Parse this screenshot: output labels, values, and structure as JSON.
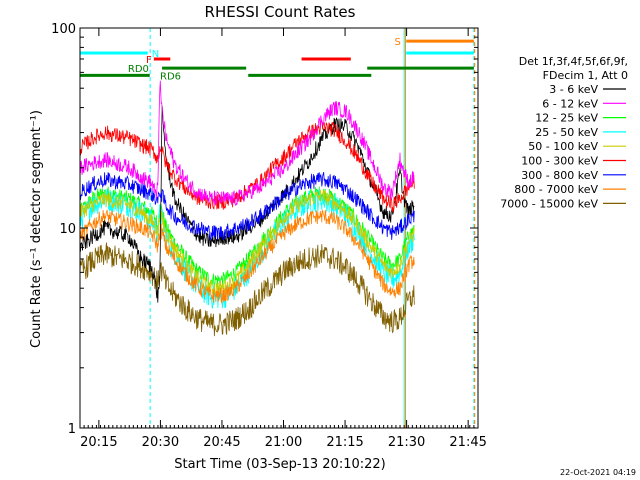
{
  "chart_data": {
    "type": "line",
    "title": "RHESSI Count Rates",
    "xlabel": "Start Time (03-Sep-13 20:10:22)",
    "ylabel": "Count Rate (s⁻¹ detector segment⁻¹)",
    "x_unit": "minutes after 20:10:22",
    "xlim": [
      0,
      97
    ],
    "ylim": [
      1,
      100
    ],
    "yscale": "log",
    "x_ticks": [
      {
        "label": "20:15",
        "x": 4.6
      },
      {
        "label": "20:30",
        "x": 19.6
      },
      {
        "label": "20:45",
        "x": 34.6
      },
      {
        "label": "21:00",
        "x": 49.6
      },
      {
        "label": "21:15",
        "x": 64.6
      },
      {
        "label": "21:30",
        "x": 79.6
      },
      {
        "label": "21:45",
        "x": 94.6
      }
    ],
    "y_ticks": [
      {
        "label": "1",
        "y": 1
      },
      {
        "label": "10",
        "y": 10
      },
      {
        "label": "100",
        "y": 100
      }
    ],
    "grid": false,
    "legend_position": "right",
    "legend_header": [
      "Det 1f,3f,4f,5f,6f,9f,",
      "FDecim 1, Att 0"
    ],
    "x_common": [
      0,
      3,
      6,
      9,
      12,
      15,
      17,
      18,
      18.5,
      19,
      19.5,
      20,
      21,
      23,
      26,
      29,
      32,
      35,
      38,
      41,
      44,
      47,
      50,
      53,
      56,
      59,
      62,
      65,
      68,
      71,
      74,
      76,
      78,
      79,
      80,
      81.5
    ],
    "series": [
      {
        "name": "3 - 6 keV",
        "color": "#000000",
        "values": [
          8,
          9,
          10,
          9.5,
          9,
          7,
          6.5,
          6,
          5,
          4.5,
          6,
          38,
          22,
          14,
          11,
          9,
          8.5,
          9,
          9,
          10,
          11,
          13,
          15,
          18,
          22,
          28,
          33,
          32,
          25,
          17,
          12,
          11.5,
          19,
          14,
          12,
          13
        ]
      },
      {
        "name": "6 - 12 keV",
        "color": "#ff00ff",
        "values": [
          20,
          21,
          22,
          21,
          20,
          18,
          17,
          16,
          14,
          18,
          55,
          38,
          28,
          21,
          17,
          15,
          14,
          14,
          14,
          15,
          16,
          18,
          20,
          24,
          28,
          35,
          40,
          38,
          30,
          22,
          16,
          15,
          22,
          19,
          17,
          18
        ]
      },
      {
        "name": "12 - 25 keV",
        "color": "#00ff00",
        "values": [
          12,
          14,
          15,
          14.5,
          14,
          13,
          12,
          11.5,
          11,
          10,
          13,
          12,
          10,
          8.5,
          7,
          6,
          5.5,
          5.5,
          6,
          7,
          8.5,
          10,
          12,
          13.5,
          14.5,
          15,
          14,
          12.5,
          10.5,
          8.5,
          7,
          6.5,
          7,
          8,
          9,
          10
        ]
      },
      {
        "name": "25 - 50 keV",
        "color": "#00ffff",
        "values": [
          11,
          13,
          14,
          13.5,
          13,
          12,
          11,
          10.5,
          10,
          9.5,
          12,
          11,
          9,
          7.5,
          6,
          5,
          4.5,
          4.5,
          5,
          6,
          7.5,
          9,
          11,
          12.5,
          13.5,
          14,
          13,
          11.5,
          9.5,
          7.5,
          6,
          5.5,
          6,
          7,
          8,
          9
        ]
      },
      {
        "name": "50 - 100 keV",
        "color": "#cccc00",
        "values": [
          12,
          13,
          14,
          13.5,
          13,
          12,
          11,
          10.5,
          10,
          9.5,
          12,
          11,
          9.5,
          8,
          6.5,
          5.5,
          5,
          5,
          5.5,
          6.5,
          8,
          9.5,
          11.5,
          13,
          14,
          14.5,
          13.5,
          12,
          10,
          8,
          6.5,
          6,
          6.5,
          7.5,
          8.5,
          9.5
        ]
      },
      {
        "name": "100 - 300 keV",
        "color": "#ff0000",
        "values": [
          25,
          28,
          30,
          29,
          28,
          26,
          25,
          24,
          23,
          22,
          26,
          24,
          21,
          18,
          15.5,
          14,
          13.5,
          13.5,
          14,
          15.5,
          17,
          20,
          23,
          27,
          30,
          32,
          31,
          27,
          22,
          17,
          14,
          13,
          14,
          15,
          16,
          17
        ]
      },
      {
        "name": "300 - 800 keV",
        "color": "#0000ff",
        "values": [
          15,
          16.5,
          17.5,
          17,
          16.5,
          15.5,
          15,
          14.5,
          14,
          13.5,
          15.5,
          14.5,
          13,
          11.5,
          10.5,
          10,
          9.5,
          9.5,
          10,
          10.5,
          11.5,
          13,
          14.5,
          16,
          17,
          17.5,
          17,
          15.5,
          13.5,
          11.5,
          10,
          9.5,
          10,
          10.5,
          11,
          11.5
        ]
      },
      {
        "name": "800 - 7000 keV",
        "color": "#ff8000",
        "values": [
          9,
          10.5,
          11.5,
          11,
          10.5,
          10,
          9.5,
          9,
          8.5,
          8,
          10,
          9.5,
          8,
          7,
          5.8,
          5,
          4.6,
          4.6,
          5,
          5.8,
          7,
          8.2,
          9.5,
          10.5,
          11.2,
          11.5,
          11,
          9.8,
          8.2,
          6.5,
          5.2,
          4.8,
          5,
          5.8,
          6.5,
          7
        ]
      },
      {
        "name": "7000 - 15000 keV",
        "color": "#806000",
        "values": [
          6,
          6.8,
          7.4,
          7.1,
          6.8,
          6.4,
          6.1,
          5.8,
          5.5,
          5.2,
          6.4,
          6,
          5.2,
          4.6,
          3.9,
          3.5,
          3.3,
          3.3,
          3.5,
          3.9,
          4.6,
          5.3,
          6.1,
          6.7,
          7.1,
          7.3,
          7,
          6.3,
          5.3,
          4.3,
          3.6,
          3.4,
          3.5,
          3.9,
          4.3,
          4.6
        ]
      }
    ],
    "vertical_lines": [
      {
        "x": 0.0,
        "color": "#00ffff",
        "style": "solid"
      },
      {
        "x": 17.1,
        "color": "#00ffff",
        "style": "dashed"
      },
      {
        "x": 79.0,
        "color": "#00ffff",
        "style": "solid"
      },
      {
        "x": 79.3,
        "color": "#ff8000",
        "style": "solid"
      },
      {
        "x": 96.0,
        "color": "#00ffff",
        "style": "dashed"
      },
      {
        "x": 96.2,
        "color": "#ff8000",
        "style": "dashed"
      }
    ],
    "flag_bars": [
      {
        "label": "N",
        "color": "#00ffff",
        "segments": [
          [
            0,
            16.5
          ],
          [
            79.5,
            96
          ]
        ],
        "y": 75
      },
      {
        "label": "S",
        "color": "#ff8000",
        "segments": [
          [
            79.5,
            96
          ]
        ],
        "y": 86
      },
      {
        "label": "F",
        "color": "#ff0000",
        "segments": [
          [
            18,
            22
          ],
          [
            54,
            66
          ]
        ],
        "y": 70
      },
      {
        "label": "RD0",
        "color": "#008000",
        "segments": [
          [
            20,
            40.5
          ],
          [
            70,
            96
          ]
        ],
        "y": 63
      },
      {
        "label": "RD6",
        "color": "#008000",
        "segments": [
          [
            0,
            17
          ],
          [
            41,
            71
          ]
        ],
        "y": 58
      }
    ],
    "timestamp": "22-Oct-2021 04:19"
  }
}
